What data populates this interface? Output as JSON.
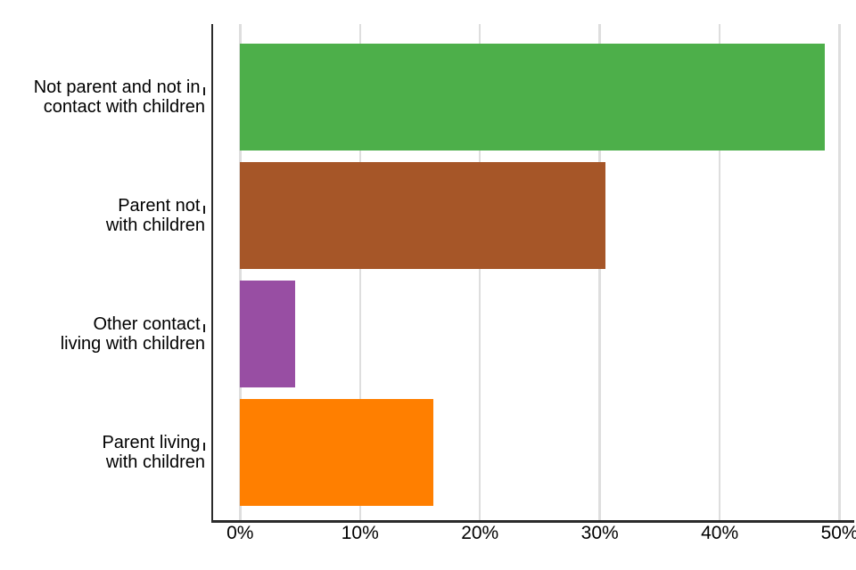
{
  "chart_data": {
    "type": "bar",
    "orientation": "horizontal",
    "title": "",
    "xlabel": "",
    "ylabel": "",
    "categories": [
      "Not parent and not in contact with children",
      "Parent not with children",
      "Other contact living with children",
      "Parent living with children"
    ],
    "category_lines": [
      [
        "Not parent and not in",
        "contact with children"
      ],
      [
        "Parent not",
        "with children"
      ],
      [
        "Other contact",
        "living with children"
      ],
      [
        "Parent living",
        "with children"
      ]
    ],
    "values": [
      48.8,
      30.5,
      4.6,
      16.1
    ],
    "unit": "%",
    "bar_colors": [
      "#4daf4a",
      "#a65628",
      "#984ea3",
      "#ff7f00"
    ],
    "xlim": [
      0,
      50
    ],
    "x_ticks": [
      0,
      10,
      20,
      30,
      40,
      50
    ],
    "x_tick_labels": [
      "0%",
      "10%",
      "20%",
      "30%",
      "40%",
      "50%"
    ],
    "grid": "vertical-gridlines-on",
    "legend": "none"
  },
  "style": {
    "background_color": "#ffffff",
    "axis_color": "#2b2b2b",
    "gridline_color": "#dedede",
    "text_color": "#000000",
    "label_tick_color": "#1a1a1a"
  }
}
